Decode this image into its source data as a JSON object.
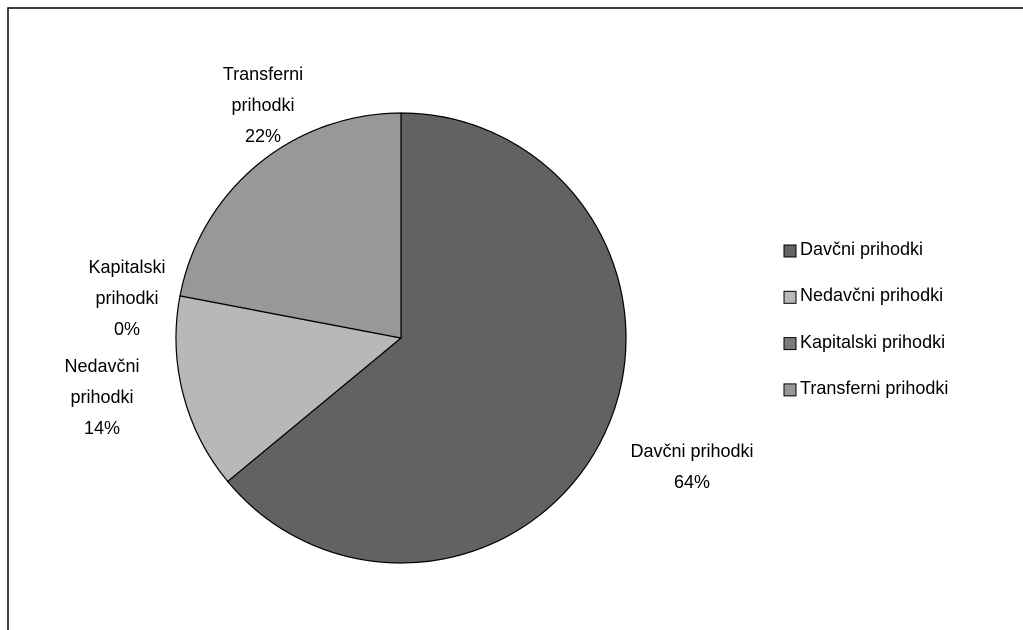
{
  "chart_data": {
    "type": "pie",
    "categories": [
      "Davčni prihodki",
      "Nedavčni prihodki",
      "Kapitalski prihodki",
      "Transferni prihodki"
    ],
    "values": [
      64,
      14,
      0,
      22
    ],
    "value_labels": [
      "64%",
      "14%",
      "0%",
      "22%"
    ],
    "colors": [
      "#626262",
      "#b8b8b8",
      "#7a7a7a",
      "#989898"
    ],
    "legend": "right"
  }
}
